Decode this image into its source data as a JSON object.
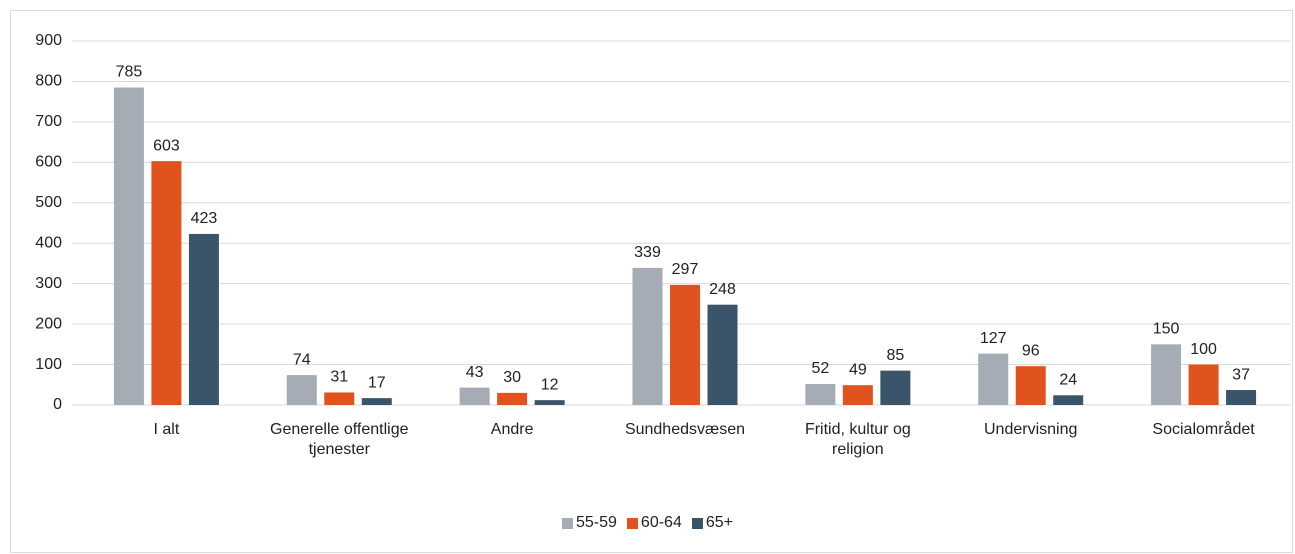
{
  "chart_data": {
    "type": "bar",
    "categories": [
      "I alt",
      "Generelle offentlige tjenester",
      "Andre",
      "Sundhedsvæsen",
      "Fritid, kultur og religion",
      "Undervisning",
      "Socialområdet"
    ],
    "series": [
      {
        "name": "55-59",
        "color": "#a5acb5",
        "values": [
          785,
          74,
          43,
          339,
          52,
          127,
          150
        ]
      },
      {
        "name": "60-64",
        "color": "#e0531f",
        "values": [
          603,
          31,
          30,
          297,
          49,
          96,
          100
        ]
      },
      {
        "name": "65+",
        "color": "#3a5569",
        "values": [
          423,
          17,
          12,
          248,
          85,
          24,
          37
        ]
      }
    ],
    "ylim": [
      0,
      900
    ],
    "yticks": [
      0,
      100,
      200,
      300,
      400,
      500,
      600,
      700,
      800,
      900
    ],
    "grid": true,
    "legend": "bottom"
  }
}
